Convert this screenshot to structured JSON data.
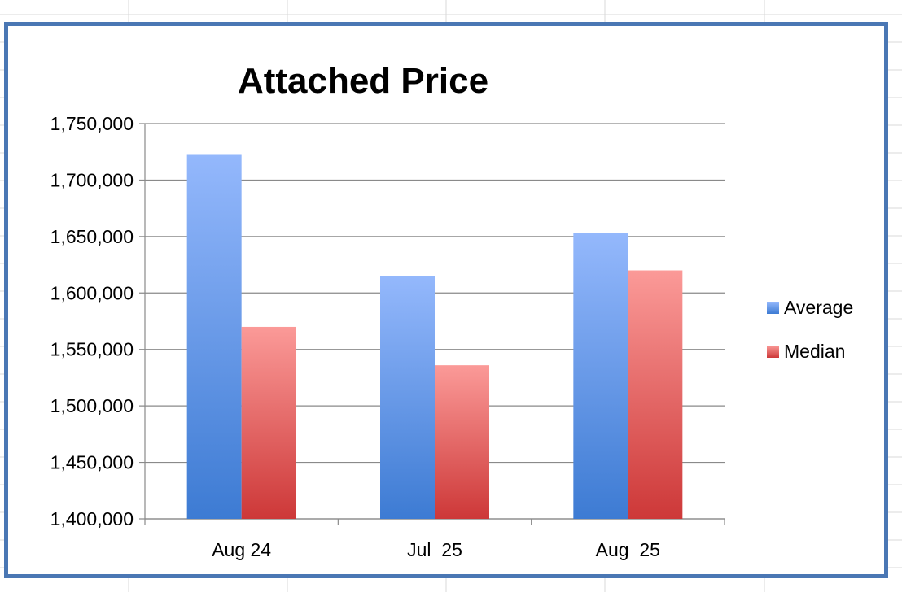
{
  "chart_data": {
    "type": "bar",
    "title": "Attached Price",
    "xlabel": "",
    "ylabel": "",
    "categories": [
      "Aug 24",
      "Jul  25",
      "Aug  25"
    ],
    "series": [
      {
        "name": "Average",
        "values": [
          1723000,
          1615000,
          1653000
        ]
      },
      {
        "name": "Median",
        "values": [
          1570000,
          1536000,
          1620000
        ]
      }
    ],
    "ylim": [
      1400000,
      1750000
    ],
    "yticks": [
      1400000,
      1450000,
      1500000,
      1550000,
      1600000,
      1650000,
      1700000,
      1750000
    ],
    "ytick_labels": [
      "1,400,000",
      "1,450,000",
      "1,500,000",
      "1,550,000",
      "1,600,000",
      "1,650,000",
      "1,700,000",
      "1,750,000"
    ],
    "grid": true,
    "legend": "right",
    "colors": {
      "Average": {
        "top": "#94b8fc",
        "bottom": "#3d7bd3"
      },
      "Median": {
        "top": "#fb9a98",
        "bottom": "#cd3838"
      },
      "border": "#4a77b4",
      "gridline": "#8a8a8a"
    }
  }
}
